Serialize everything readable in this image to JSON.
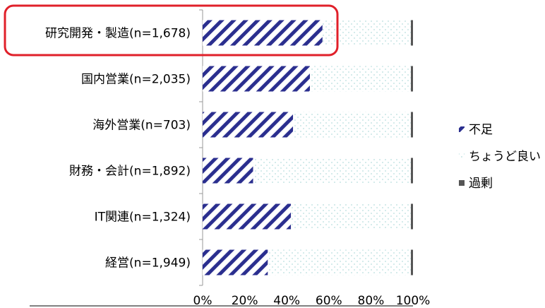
{
  "chart_data": {
    "type": "bar",
    "stacked": true,
    "orientation": "horizontal",
    "categories": [
      "研究開発・製造(n=1,678)",
      "国内営業(n=2,035)",
      "海外営業(n=703)",
      "財務・会計(n=1,892)",
      "IT関連(n=1,324)",
      "経営(n=1,949)"
    ],
    "series": [
      {
        "name": "不足",
        "values": [
          57,
          51,
          43,
          24,
          42,
          31
        ],
        "color": "#2b2f8f",
        "pattern": "diagonal-stripes"
      },
      {
        "name": "ちょうど良い",
        "values": [
          42,
          48,
          56,
          75,
          57,
          68
        ],
        "color": "#cfe8e8",
        "pattern": "dots"
      },
      {
        "name": "過剰",
        "values": [
          1,
          1,
          1,
          1,
          1,
          1
        ],
        "color": "#555555",
        "pattern": "solid"
      }
    ],
    "xlim": [
      0,
      100
    ],
    "x_ticks": [
      "0%",
      "20%",
      "40%",
      "60%",
      "80%",
      "100%"
    ],
    "legend_position": "right",
    "highlight_category": "研究開発・製造(n=1,678)",
    "highlight_color": "#e0202a",
    "grid": false
  }
}
